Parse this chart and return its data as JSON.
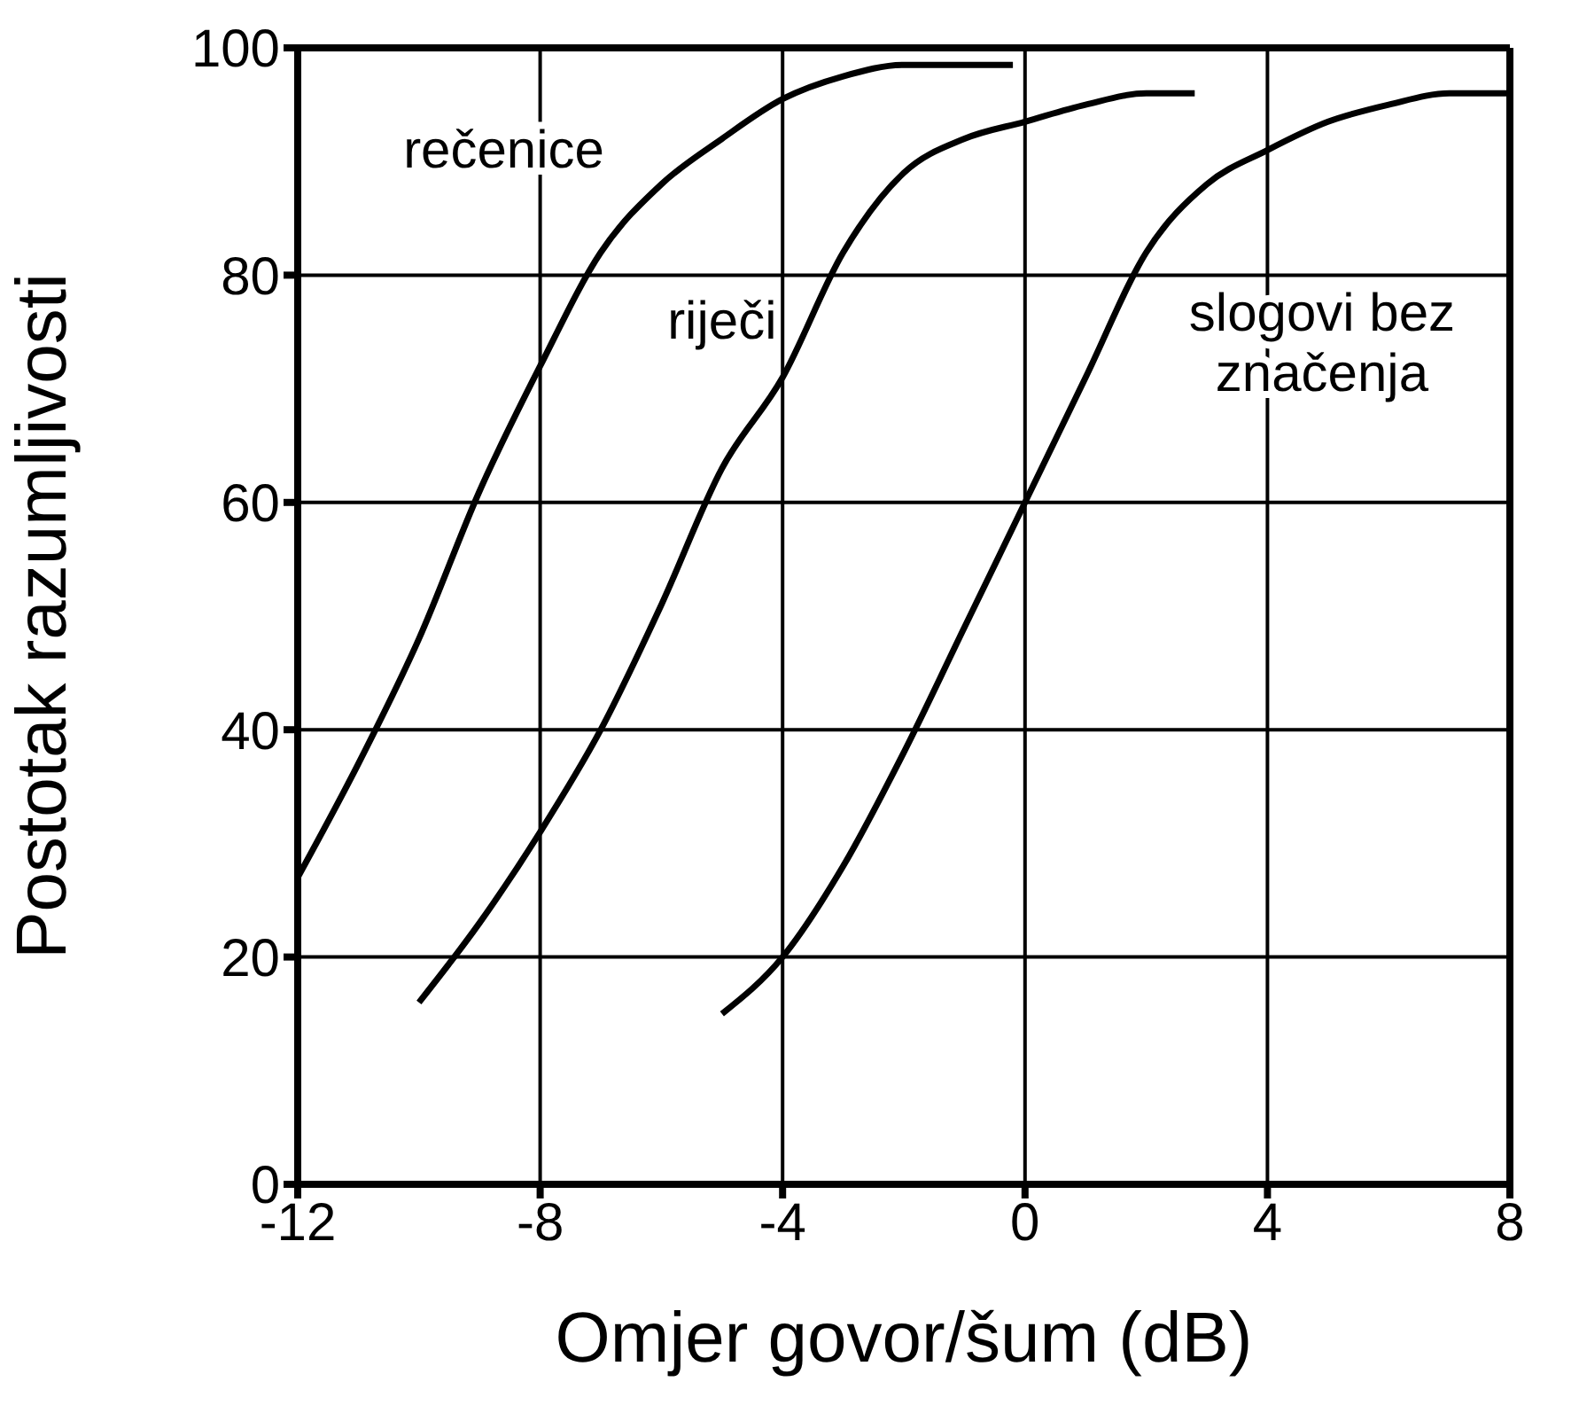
{
  "chart_data": {
    "type": "line",
    "xlabel": "Omjer govor/šum (dB)",
    "ylabel": "Postotak razumljivosti",
    "xlim": [
      -12,
      8
    ],
    "xticks": [
      -12,
      -8,
      -4,
      0,
      4,
      8
    ],
    "ylim": [
      0,
      100
    ],
    "yticks": [
      0,
      20,
      40,
      60,
      80,
      100
    ],
    "grid": true,
    "legend": false,
    "marker": "none",
    "line_style": "solid",
    "series": [
      {
        "name": "rečenice",
        "color": "#000000",
        "x": [
          -12,
          -11,
          -10,
          -9,
          -8,
          -7,
          -6,
          -5,
          -4,
          -3,
          -2,
          -0.2
        ],
        "values": [
          27,
          37,
          48,
          61,
          72,
          82,
          88,
          92,
          95.5,
          97.5,
          98.5,
          98.5
        ]
      },
      {
        "name": "riječi",
        "color": "#000000",
        "x": [
          -10,
          -9,
          -8,
          -7,
          -6,
          -5,
          -4,
          -3,
          -2,
          -1,
          0,
          1,
          2,
          2.8
        ],
        "values": [
          16,
          23,
          31,
          40,
          51,
          63,
          71,
          82,
          89,
          92,
          93.5,
          95,
          96,
          96
        ]
      },
      {
        "name": "slogovi bez značenja",
        "color": "#000000",
        "x": [
          -5,
          -4,
          -3,
          -2,
          -1,
          0,
          1,
          2,
          3,
          4,
          5,
          6,
          7,
          8
        ],
        "values": [
          15,
          20,
          28,
          38,
          49,
          60,
          71,
          82,
          88,
          91,
          93.5,
          95,
          96,
          96
        ]
      }
    ]
  }
}
